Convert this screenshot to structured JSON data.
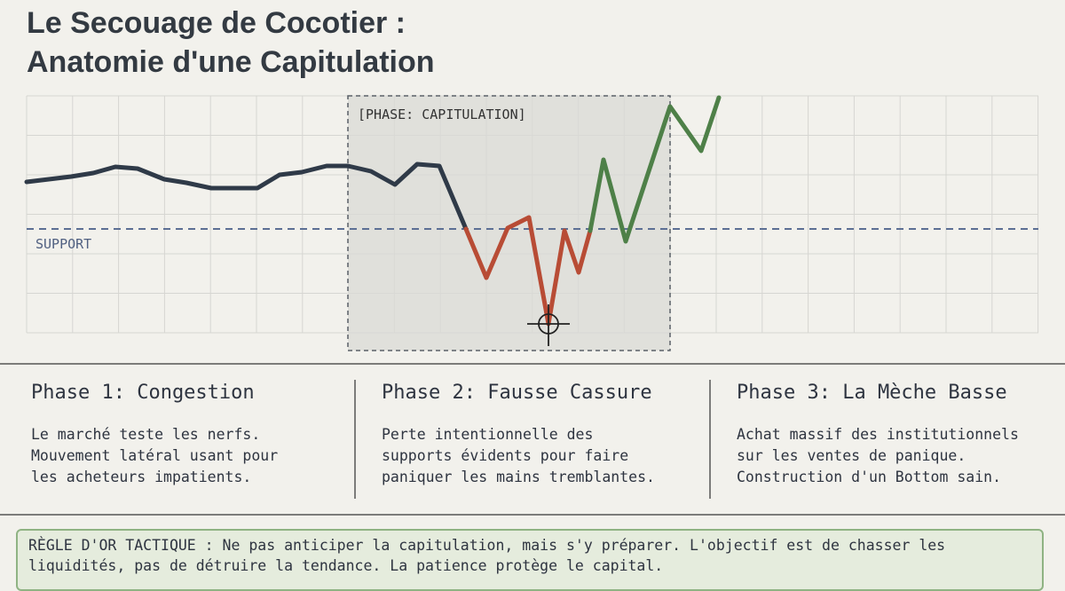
{
  "header": {
    "title": [
      "Le Secouage de Cocotier :",
      "Anatomie d'une Capitulation"
    ]
  },
  "diagram": {
    "phase_label": "[PHASE: CAPITULATION]",
    "support_label": "SUPPORT"
  },
  "phases": [
    {
      "title": "Phase 1: Congestion",
      "lines": [
        "Le marché teste les nerfs.",
        "Mouvement latéral usant pour",
        "les acheteurs impatients."
      ]
    },
    {
      "title": "Phase 2: Fausse Cassure",
      "lines": [
        "Perte intentionnelle des",
        "supports évidents pour faire",
        "paniquer les mains tremblantes."
      ]
    },
    {
      "title": "Phase 3: La Mèche Basse",
      "lines": [
        "Achat massif des institutionnels",
        "sur les ventes de panique.",
        "Construction d'un Bottom sain."
      ]
    }
  ],
  "rule": {
    "lines": [
      "RÈGLE D'OR TACTIQUE : Ne pas anticiper la capitulation, mais s'y préparer. L'objectif est de chasser les",
      "liquidités, pas de détruire la tendance. La patience protège le capital."
    ]
  }
}
